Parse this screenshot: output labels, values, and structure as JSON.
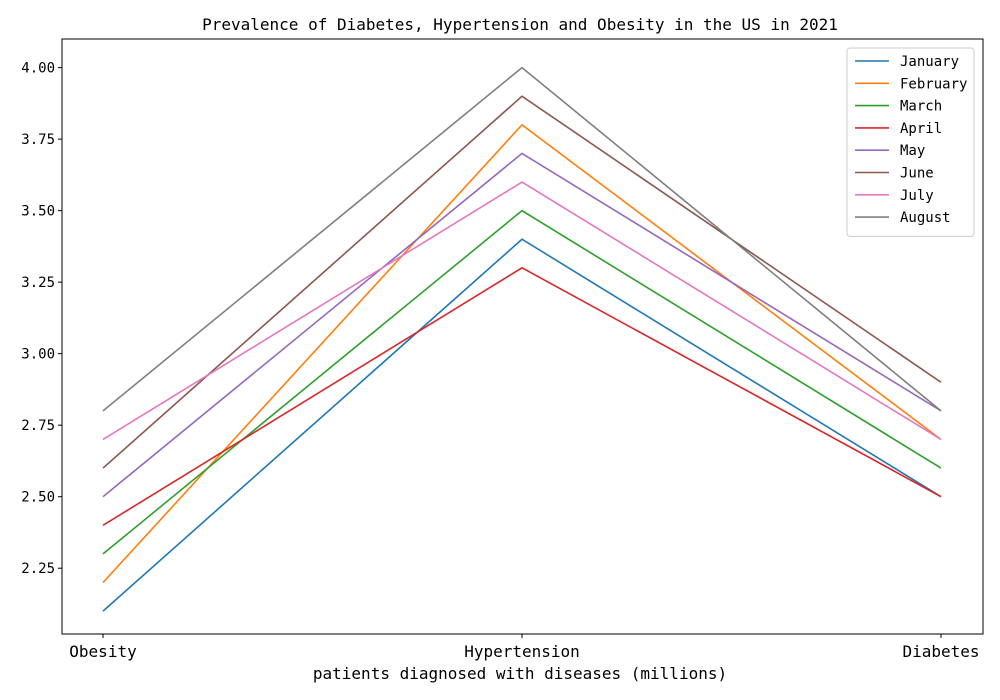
{
  "chart_data": {
    "type": "line",
    "title": "Prevalence of Diabetes, Hypertension and Obesity in the US in 2021",
    "xlabel": "patients diagnosed with diseases (millions)",
    "ylabel": "",
    "categories": [
      "Obesity",
      "Hypertension",
      "Diabetes"
    ],
    "ylim": [
      2.02,
      4.1
    ],
    "yticks": [
      "2.25",
      "2.50",
      "2.75",
      "3.00",
      "3.25",
      "3.50",
      "3.75",
      "4.00"
    ],
    "grid": false,
    "legend_position": "top-right",
    "series": [
      {
        "name": "January",
        "color": "#1f77b4",
        "values": [
          2.1,
          3.4,
          2.5
        ]
      },
      {
        "name": "February",
        "color": "#ff7f0e",
        "values": [
          2.2,
          3.8,
          2.7
        ]
      },
      {
        "name": "March",
        "color": "#2ca02c",
        "values": [
          2.3,
          3.5,
          2.6
        ]
      },
      {
        "name": "April",
        "color": "#d62728",
        "values": [
          2.4,
          3.3,
          2.5
        ]
      },
      {
        "name": "May",
        "color": "#9467bd",
        "values": [
          2.5,
          3.7,
          2.8
        ]
      },
      {
        "name": "June",
        "color": "#8c564b",
        "values": [
          2.6,
          3.9,
          2.9
        ]
      },
      {
        "name": "July",
        "color": "#e377c2",
        "values": [
          2.7,
          3.6,
          2.7
        ]
      },
      {
        "name": "August",
        "color": "#7f7f7f",
        "values": [
          2.8,
          4.0,
          2.8
        ]
      }
    ]
  }
}
